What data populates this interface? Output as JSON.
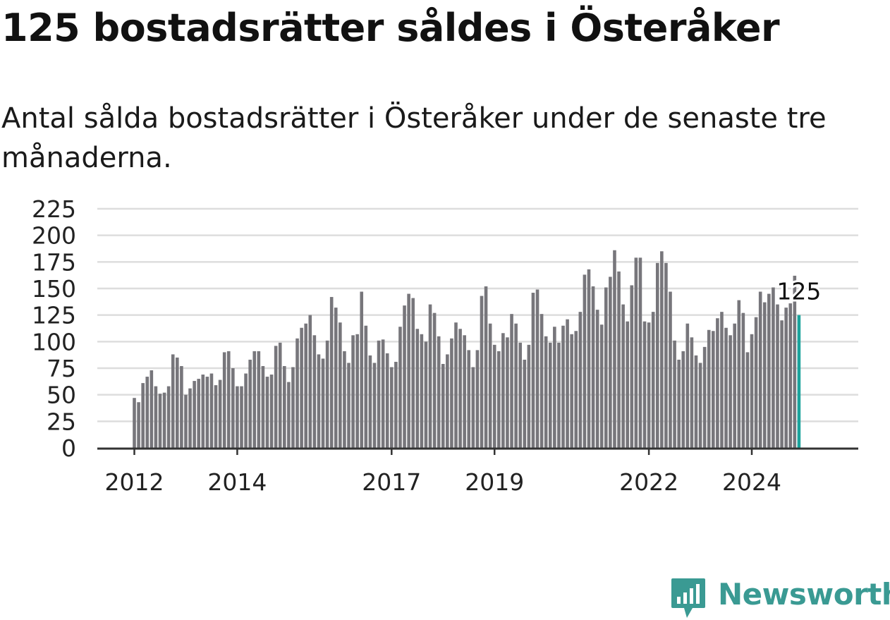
{
  "header": {
    "title": "125 bostadsrätter såldes i Österåker",
    "subtitle": "Antal sålda bostadsrätter i Österåker under de senaste tre månaderna."
  },
  "brand": {
    "name": "Newsworthy",
    "color": "#3a9a93",
    "icon": "bar-chart-badge-icon"
  },
  "colors": {
    "bar": "#77767b",
    "highlight": "#1ba39c",
    "grid": "#dddddd",
    "axis": "#333333"
  },
  "chart_data": {
    "type": "bar",
    "title": "",
    "xlabel": "",
    "ylabel": "",
    "ylim": [
      0,
      225
    ],
    "yticks": [
      0,
      25,
      50,
      75,
      100,
      125,
      150,
      175,
      200,
      225
    ],
    "xticks": [
      "2012",
      "2014",
      "2017",
      "2019",
      "2022",
      "2024"
    ],
    "x_start": "2012-01",
    "grid": true,
    "highlight_label": "125",
    "values": [
      47,
      43,
      61,
      67,
      73,
      58,
      51,
      52,
      58,
      88,
      85,
      77,
      50,
      56,
      63,
      65,
      69,
      67,
      70,
      59,
      64,
      90,
      91,
      75,
      58,
      58,
      70,
      83,
      91,
      91,
      77,
      67,
      69,
      96,
      99,
      77,
      62,
      76,
      103,
      113,
      117,
      125,
      106,
      88,
      84,
      101,
      142,
      132,
      118,
      91,
      80,
      106,
      107,
      147,
      115,
      87,
      80,
      101,
      102,
      89,
      76,
      81,
      114,
      134,
      145,
      141,
      112,
      107,
      100,
      135,
      127,
      105,
      79,
      88,
      103,
      118,
      112,
      106,
      92,
      76,
      92,
      143,
      152,
      117,
      97,
      91,
      108,
      104,
      126,
      117,
      99,
      83,
      97,
      146,
      149,
      126,
      105,
      99,
      114,
      99,
      115,
      121,
      107,
      110,
      128,
      163,
      168,
      152,
      130,
      116,
      151,
      161,
      186,
      166,
      135,
      119,
      153,
      179,
      179,
      119,
      118,
      128,
      174,
      185,
      174,
      147,
      101,
      83,
      91,
      117,
      104,
      87,
      80,
      95,
      111,
      110,
      122,
      128,
      113,
      106,
      117,
      139,
      127,
      90,
      107,
      123,
      147,
      137,
      145,
      151,
      135,
      120,
      132,
      136,
      162,
      125
    ]
  }
}
